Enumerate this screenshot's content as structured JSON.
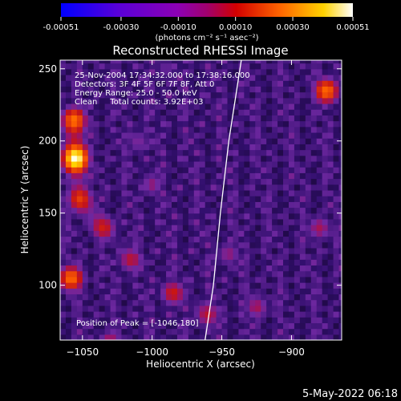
{
  "colorbar": {
    "ticks": [
      "-0.00051",
      "-0.00030",
      "-0.00010",
      "0.00010",
      "0.00030",
      "0.00051"
    ],
    "tick_values": [
      -0.00051,
      -0.0003,
      -0.0001,
      0.0001,
      0.0003,
      0.00051
    ],
    "range": [
      -0.00051,
      0.00051
    ],
    "unit_label": "(photons cm⁻² s⁻¹ asec⁻²)"
  },
  "info": {
    "time": "25-Nov-2004 17:34:32.000 to 17:38:16.000",
    "detectors": "Detectors: 3F 4F 5F 6F 7F 8F, Att 0",
    "energy": "Energy Range: 25.0 - 50.0 keV",
    "clean": "Clean     Total counts: 3.92E+03"
  },
  "peak_label": "Position of Peak = [-1046,180]",
  "footer_date": "5-May-2022 06:18",
  "chart_data": {
    "type": "heatmap",
    "title": "Reconstructed RHESSI Image",
    "xlabel": "Heliocentric X (arcsec)",
    "ylabel": "Heliocentric Y (arcsec)",
    "xlim": [
      -1066,
      -864
    ],
    "ylim": [
      62,
      256
    ],
    "xticks": [
      -1050,
      -1000,
      -950,
      -900
    ],
    "xtick_labels": [
      "−1050",
      "−1000",
      "−950",
      "−900"
    ],
    "yticks": [
      100,
      150,
      200,
      250
    ],
    "ytick_labels": [
      "100",
      "150",
      "200",
      "250"
    ],
    "grid": false,
    "limb_curve": [
      [
        -962,
        62
      ],
      [
        -956,
        100
      ],
      [
        -951,
        150
      ],
      [
        -945,
        200
      ],
      [
        -936,
        256
      ]
    ],
    "hotspots": [
      {
        "x": -1055,
        "y": 188,
        "value": 0.00051
      },
      {
        "x": -1056,
        "y": 215,
        "value": 0.0004
      },
      {
        "x": -1052,
        "y": 160,
        "value": 0.00035
      },
      {
        "x": -1058,
        "y": 105,
        "value": 0.0004
      },
      {
        "x": -1035,
        "y": 140,
        "value": 0.00032
      },
      {
        "x": -1015,
        "y": 118,
        "value": 0.0003
      },
      {
        "x": -1000,
        "y": 170,
        "value": 0.00026
      },
      {
        "x": -1010,
        "y": 200,
        "value": 0.00024
      },
      {
        "x": -985,
        "y": 95,
        "value": 0.00032
      },
      {
        "x": -960,
        "y": 80,
        "value": 0.0003
      },
      {
        "x": -945,
        "y": 122,
        "value": 0.00026
      },
      {
        "x": -925,
        "y": 85,
        "value": 0.00028
      },
      {
        "x": -875,
        "y": 235,
        "value": 0.0004
      },
      {
        "x": -880,
        "y": 140,
        "value": 0.00028
      },
      {
        "x": -990,
        "y": 250,
        "value": 0.00022
      },
      {
        "x": -1030,
        "y": 60,
        "value": 0.0003
      }
    ]
  }
}
